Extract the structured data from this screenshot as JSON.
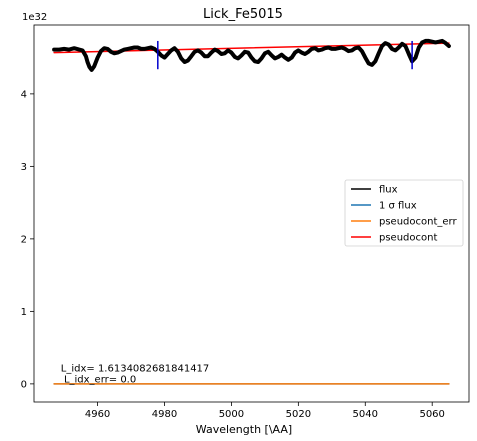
{
  "chart_data": {
    "type": "line",
    "title": "Lick_Fe5015",
    "xlabel": "Wavelength [\\AA]",
    "ylabel": "",
    "y_offset_label": "1e32",
    "xlim": [
      4941,
      5071
    ],
    "ylim": [
      -0.25,
      4.95
    ],
    "x_ticks": [
      4960,
      4980,
      5000,
      5020,
      5040,
      5060
    ],
    "x_tick_labels": [
      "4960",
      "4980",
      "5000",
      "5020",
      "5040",
      "5060"
    ],
    "y_ticks": [
      0,
      1,
      2,
      3,
      4
    ],
    "y_tick_labels": [
      "0",
      "1",
      "2",
      "3",
      "4"
    ],
    "grid": false,
    "legend": {
      "placement": "center-right",
      "entries": [
        {
          "label": "flux",
          "color": "#000000"
        },
        {
          "label": "1 σ flux",
          "color": "#1f77b4"
        },
        {
          "label": "pseudocont_err",
          "color": "#ff7f0e"
        },
        {
          "label": "pseudocont",
          "color": "#ff0000"
        }
      ]
    },
    "series": [
      {
        "name": "flux",
        "color": "#000000",
        "x": [
          4947,
          4948.5,
          4950,
          4951.5,
          4953,
          4954.5,
          4955.5,
          4956.5,
          4957,
          4957.6,
          4958.2,
          4959,
          4960,
          4961,
          4962,
          4963,
          4964,
          4965,
          4966,
          4967,
          4968,
          4969,
          4970,
          4971,
          4972,
          4973,
          4974,
          4975,
          4976,
          4977,
          4978,
          4979,
          4980,
          4981,
          4982,
          4983,
          4984,
          4985,
          4986,
          4987,
          4988,
          4989,
          4990,
          4991,
          4992,
          4993,
          4994,
          4995,
          4996,
          4997,
          4998,
          4999,
          5000,
          5001,
          5002,
          5003,
          5004,
          5005,
          5006,
          5007,
          5008,
          5009,
          5010,
          5011,
          5012,
          5013,
          5014,
          5015,
          5016,
          5017,
          5018,
          5019,
          5020,
          5021,
          5022,
          5023,
          5024,
          5025,
          5026,
          5027,
          5028,
          5029,
          5030,
          5031,
          5032,
          5033,
          5034,
          5035,
          5036,
          5037,
          5038,
          5039,
          5040,
          5041,
          5042,
          5043,
          5044,
          5045,
          5046,
          5047,
          5048,
          5049,
          5050,
          5051,
          5052,
          5053,
          5054,
          5055,
          5056,
          5057,
          5058,
          5059,
          5060,
          5061,
          5062,
          5063,
          5064,
          5065
        ],
        "y": [
          4.61,
          4.61,
          4.62,
          4.61,
          4.63,
          4.61,
          4.6,
          4.52,
          4.44,
          4.37,
          4.33,
          4.38,
          4.5,
          4.59,
          4.63,
          4.62,
          4.58,
          4.56,
          4.57,
          4.59,
          4.61,
          4.62,
          4.63,
          4.64,
          4.64,
          4.62,
          4.62,
          4.63,
          4.64,
          4.62,
          4.58,
          4.53,
          4.5,
          4.55,
          4.6,
          4.63,
          4.58,
          4.49,
          4.44,
          4.46,
          4.52,
          4.58,
          4.6,
          4.57,
          4.52,
          4.52,
          4.57,
          4.61,
          4.59,
          4.55,
          4.56,
          4.6,
          4.57,
          4.51,
          4.49,
          4.53,
          4.58,
          4.57,
          4.5,
          4.45,
          4.44,
          4.49,
          4.56,
          4.58,
          4.53,
          4.49,
          4.51,
          4.54,
          4.5,
          4.47,
          4.5,
          4.57,
          4.6,
          4.57,
          4.55,
          4.58,
          4.62,
          4.63,
          4.6,
          4.61,
          4.63,
          4.64,
          4.62,
          4.62,
          4.63,
          4.64,
          4.62,
          4.59,
          4.6,
          4.63,
          4.64,
          4.59,
          4.5,
          4.42,
          4.4,
          4.45,
          4.56,
          4.66,
          4.7,
          4.68,
          4.62,
          4.6,
          4.64,
          4.69,
          4.66,
          4.55,
          4.45,
          4.5,
          4.64,
          4.71,
          4.73,
          4.73,
          4.72,
          4.71,
          4.72,
          4.73,
          4.7,
          4.66
        ]
      },
      {
        "name": "1 σ flux",
        "color": "#1f77b4",
        "x": [
          4947,
          5065
        ],
        "y": [
          0,
          0
        ]
      },
      {
        "name": "pseudocont_err",
        "color": "#ff7f0e",
        "x": [
          4947,
          5065
        ],
        "y": [
          0,
          0
        ]
      },
      {
        "name": "pseudocont",
        "color": "#ff0000",
        "x": [
          4947,
          5065
        ],
        "y": [
          4.57,
          4.7
        ]
      }
    ],
    "vertical_markers": [
      {
        "x": 4978,
        "y_range": [
          4.34,
          4.73
        ],
        "color": "#0000cd"
      },
      {
        "x": 5054,
        "y_range": [
          4.34,
          4.73
        ],
        "color": "#0000cd"
      }
    ],
    "annotations": [
      {
        "text": "L_idx= 1.6134082681841417",
        "x": 4949,
        "y": 0.17
      },
      {
        "text": " L_idx_err= 0.0",
        "x": 4949,
        "y": 0.02
      }
    ]
  }
}
